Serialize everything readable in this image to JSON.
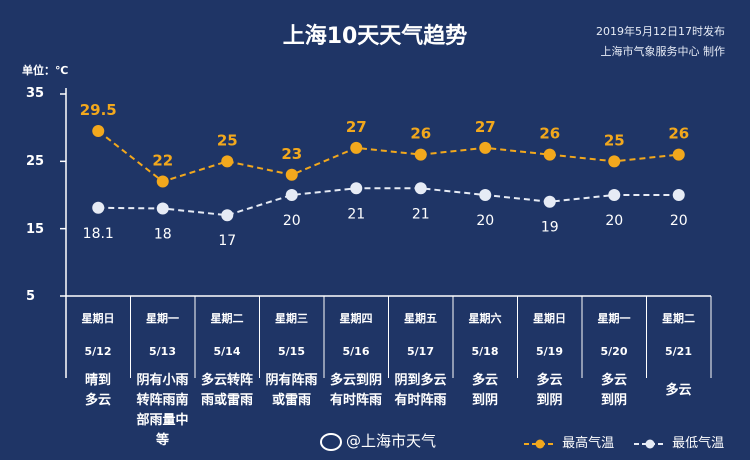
{
  "title": "上海10天天气趋势",
  "publish_time": "2019年5月12日17时发布",
  "publisher": "上海市气象服务中心  制作",
  "unit_label": "单位：℃",
  "source": "@上海市天气",
  "colors": {
    "background": "#1f3566",
    "high": "#f2a81d",
    "low": "#e6ebf5",
    "axis": "#ffffff"
  },
  "chart_data": {
    "type": "line",
    "ylim": [
      5,
      35
    ],
    "yticks": [
      "35",
      "25",
      "15",
      "5"
    ],
    "categories": [
      "5/12",
      "5/13",
      "5/14",
      "5/15",
      "5/16",
      "5/17",
      "5/18",
      "5/19",
      "5/20",
      "5/21"
    ],
    "weekdays": [
      "星期日",
      "星期一",
      "星期二",
      "星期三",
      "星期四",
      "星期五",
      "星期六",
      "星期日",
      "星期一",
      "星期二"
    ],
    "weather": [
      "晴到\n多云",
      "阴有小雨\n转阵雨南\n部雨量中\n等",
      "多云转阵\n雨或雷雨",
      "阴有阵雨\n或雷雨",
      "多云到阴\n有时阵雨",
      "阴到多云\n有时阵雨",
      "多云\n到阴",
      "多云\n到阴",
      "多云\n到阴",
      "多云"
    ],
    "series": [
      {
        "name": "最高气温",
        "values": [
          29.5,
          22,
          25,
          23,
          27,
          26,
          27,
          26,
          25,
          26
        ],
        "labels": [
          "29.5",
          "22",
          "25",
          "23",
          "27",
          "26",
          "27",
          "26",
          "25",
          "26"
        ]
      },
      {
        "name": "最低气温",
        "values": [
          18.1,
          18,
          17,
          20,
          21,
          21,
          20,
          19,
          20,
          20
        ],
        "labels": [
          "18.1",
          "18",
          "17",
          "20",
          "21",
          "21",
          "20",
          "19",
          "20",
          "20"
        ]
      }
    ]
  }
}
